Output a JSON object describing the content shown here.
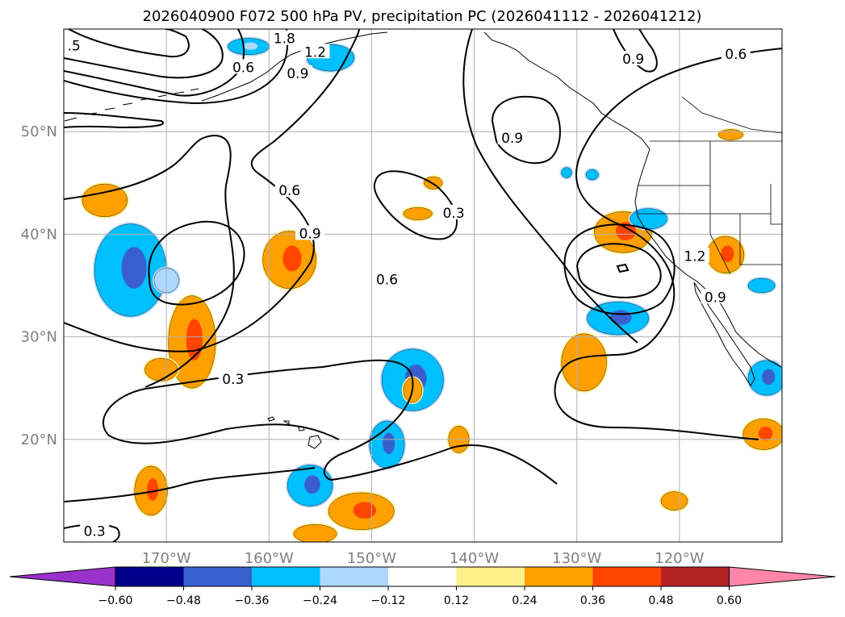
{
  "title": "2026040900 F072 500 hPa PV, precipitation PC (2026041112 - 2026041212)",
  "axes": {
    "lon_min": -180,
    "lon_max": -110,
    "lat_min": 10,
    "lat_max": 60,
    "lon_ticks": [
      {
        "value": -170,
        "label": "170°W"
      },
      {
        "value": -160,
        "label": "160°W"
      },
      {
        "value": -150,
        "label": "150°W"
      },
      {
        "value": -140,
        "label": "140°W"
      },
      {
        "value": -130,
        "label": "130°W"
      },
      {
        "value": -120,
        "label": "120°W"
      }
    ],
    "lat_ticks": [
      {
        "value": 20,
        "label": "20°N"
      },
      {
        "value": 30,
        "label": "30°N"
      },
      {
        "value": 40,
        "label": "40°N"
      },
      {
        "value": 50,
        "label": "50°N"
      }
    ],
    "tick_label_color": "#808080",
    "grid_color": "#b0b0b0"
  },
  "colorbar": {
    "boundaries": [
      "−0.60",
      "−0.48",
      "−0.36",
      "−0.24",
      "−0.12",
      "0.12",
      "0.24",
      "0.36",
      "0.48",
      "0.60"
    ],
    "colors": [
      "#9932cc",
      "#00008b",
      "#3a5fcd",
      "#00bfff",
      "#add8ff",
      "#ffffff",
      "#fff08c",
      "#ffa000",
      "#ff4500",
      "#b22222",
      "#ff85aa"
    ]
  },
  "contour_labels": [
    {
      "text": "0.6",
      "lon": -162.5,
      "lat": 56.2
    },
    {
      "text": "0.9",
      "lon": -157.2,
      "lat": 55.6
    },
    {
      "text": "1.2",
      "lon": -155.5,
      "lat": 57.7
    },
    {
      "text": ".5",
      "lon": -179.0,
      "lat": 58.3
    },
    {
      "text": "1.8",
      "lon": -158.5,
      "lat": 59.0
    },
    {
      "text": "0.6",
      "lon": -158.0,
      "lat": 44.2
    },
    {
      "text": "0.9",
      "lon": -156.0,
      "lat": 40.0
    },
    {
      "text": "0.6",
      "lon": -148.5,
      "lat": 35.5
    },
    {
      "text": "0.3",
      "lon": -163.5,
      "lat": 25.8
    },
    {
      "text": "0.3",
      "lon": -177.0,
      "lat": 11.0
    },
    {
      "text": "0.3",
      "lon": -142.0,
      "lat": 42.0
    },
    {
      "text": "0.9",
      "lon": -136.3,
      "lat": 49.3
    },
    {
      "text": "0.9",
      "lon": -124.5,
      "lat": 57.0
    },
    {
      "text": "0.6",
      "lon": -114.5,
      "lat": 57.5
    },
    {
      "text": "1.2",
      "lon": -118.5,
      "lat": 37.8
    },
    {
      "text": "0.9",
      "lon": -116.5,
      "lat": 33.8
    }
  ],
  "precip_blobs": [
    {
      "lon": -173.5,
      "lat": 36.5,
      "rx": 3.5,
      "ry": 4.5,
      "level": -2,
      "core": -3
    },
    {
      "lon": -170.0,
      "lat": 35.5,
      "rx": 1.2,
      "ry": 1.2,
      "level": -1
    },
    {
      "lon": -176.0,
      "lat": 43.3,
      "rx": 2.2,
      "ry": 1.6,
      "level": 2
    },
    {
      "lon": -167.5,
      "lat": 29.5,
      "rx": 2.3,
      "ry": 4.5,
      "level": 2,
      "core": 3
    },
    {
      "lon": -170.5,
      "lat": 26.8,
      "rx": 1.6,
      "ry": 1.1,
      "level": 2
    },
    {
      "lon": -158.0,
      "lat": 37.5,
      "rx": 2.6,
      "ry": 2.8,
      "level": 2,
      "core": 3
    },
    {
      "lon": -162.0,
      "lat": 58.3,
      "rx": 2.0,
      "ry": 0.8,
      "level": -2,
      "core": -1
    },
    {
      "lon": -154.0,
      "lat": 57.2,
      "rx": 2.3,
      "ry": 1.3,
      "level": -2
    },
    {
      "lon": -146.0,
      "lat": 25.8,
      "rx": 3.0,
      "ry": 3.0,
      "level": -2,
      "core": -3
    },
    {
      "lon": -148.5,
      "lat": 19.5,
      "rx": 1.7,
      "ry": 2.3,
      "level": -2,
      "core": -3
    },
    {
      "lon": -156.0,
      "lat": 15.5,
      "rx": 2.2,
      "ry": 2.0,
      "level": -2,
      "core": -3
    },
    {
      "lon": -151.0,
      "lat": 13.0,
      "rx": 3.2,
      "ry": 1.8,
      "level": 2,
      "core": 3
    },
    {
      "lon": -171.5,
      "lat": 15.0,
      "rx": 1.6,
      "ry": 2.4,
      "level": 2,
      "core": 3
    },
    {
      "lon": -155.5,
      "lat": 10.8,
      "rx": 2.1,
      "ry": 0.9,
      "level": 2
    },
    {
      "lon": -144.0,
      "lat": 45.0,
      "rx": 0.9,
      "ry": 0.6,
      "level": 2
    },
    {
      "lon": -145.5,
      "lat": 42.0,
      "rx": 1.4,
      "ry": 0.6,
      "level": 2
    },
    {
      "lon": -146.0,
      "lat": 24.8,
      "rx": 0.9,
      "ry": 1.2,
      "level": 2
    },
    {
      "lon": -141.5,
      "lat": 20.0,
      "rx": 1.0,
      "ry": 1.3,
      "level": 2
    },
    {
      "lon": -129.3,
      "lat": 27.5,
      "rx": 2.2,
      "ry": 2.8,
      "level": 2
    },
    {
      "lon": -125.5,
      "lat": 40.2,
      "rx": 2.8,
      "ry": 2.0,
      "level": 2,
      "core": 3
    },
    {
      "lon": -126.0,
      "lat": 31.8,
      "rx": 3.0,
      "ry": 1.6,
      "level": -2,
      "core": -3
    },
    {
      "lon": -123.0,
      "lat": 41.5,
      "rx": 1.8,
      "ry": 1.0,
      "level": -2
    },
    {
      "lon": -115.5,
      "lat": 38.0,
      "rx": 1.8,
      "ry": 1.8,
      "level": 2,
      "core": 3
    },
    {
      "lon": -112.0,
      "lat": 35.0,
      "rx": 1.3,
      "ry": 0.7,
      "level": -2
    },
    {
      "lon": -111.5,
      "lat": 26.0,
      "rx": 1.8,
      "ry": 1.7,
      "level": -2,
      "core": -3
    },
    {
      "lon": -111.8,
      "lat": 20.5,
      "rx": 2.0,
      "ry": 1.5,
      "level": 2,
      "core": 3
    },
    {
      "lon": -120.5,
      "lat": 14.0,
      "rx": 1.3,
      "ry": 0.9,
      "level": 2
    },
    {
      "lon": -131.0,
      "lat": 46.0,
      "rx": 0.5,
      "ry": 0.5,
      "level": -2
    },
    {
      "lon": -128.5,
      "lat": 45.8,
      "rx": 0.6,
      "ry": 0.5,
      "level": -2
    },
    {
      "lon": -115.0,
      "lat": 49.7,
      "rx": 1.2,
      "ry": 0.5,
      "level": 2
    }
  ]
}
